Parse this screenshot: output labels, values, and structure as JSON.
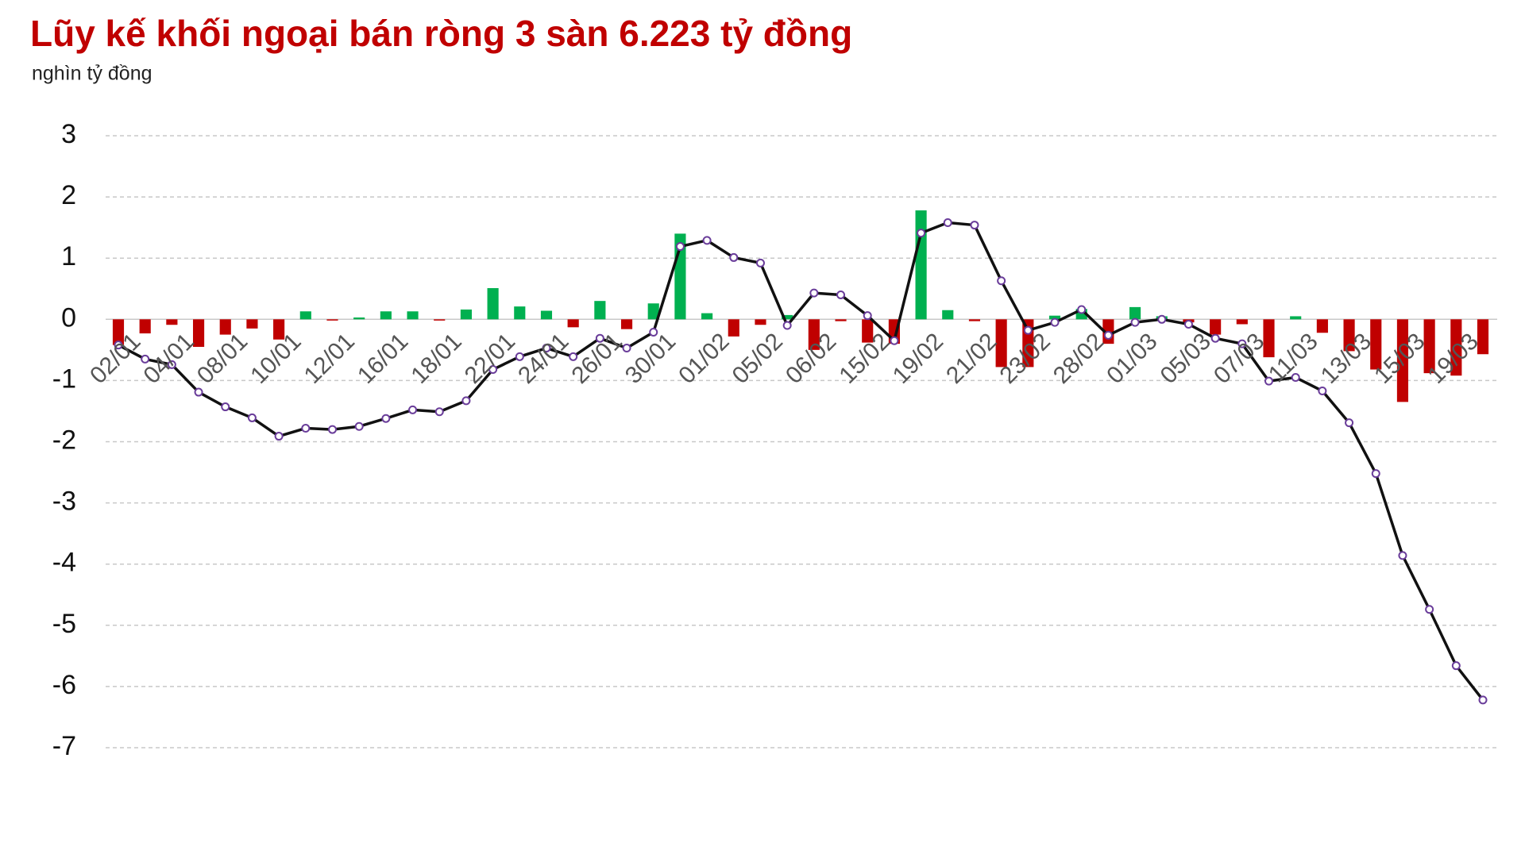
{
  "chart_data": {
    "type": "combo",
    "title": "Lũy kế khối ngoại bán ròng 3 sàn 6.223 tỷ đồng",
    "y_label": "nghìn tỷ đồng",
    "categories": [
      "02/01",
      null,
      "04/01",
      null,
      "08/01",
      null,
      "10/01",
      null,
      "12/01",
      null,
      "16/01",
      null,
      "18/01",
      null,
      "22/01",
      null,
      "24/01",
      null,
      "26/01",
      null,
      "30/01",
      null,
      "01/02",
      null,
      "05/02",
      null,
      "06/02",
      null,
      "15/02",
      null,
      "19/02",
      null,
      "21/02",
      null,
      "23/02",
      null,
      "28/02",
      null,
      "01/03",
      null,
      "05/03",
      null,
      "07/03",
      null,
      "11/03",
      null,
      "13/03",
      null,
      "15/03",
      null,
      "19/03",
      null
    ],
    "series": [
      {
        "type": "bar",
        "color": "#00b050",
        "negative_color": "#c00000",
        "values": [
          -0.42,
          -0.23,
          -0.09,
          -0.45,
          -0.25,
          -0.15,
          -0.33,
          0.13,
          -0.02,
          0.03,
          0.13,
          0.13,
          -0.02,
          0.16,
          0.51,
          0.21,
          0.14,
          -0.13,
          0.3,
          -0.16,
          0.26,
          1.4,
          0.1,
          -0.28,
          -0.09,
          0.07,
          -0.5,
          -0.03,
          -0.38,
          -0.4,
          1.78,
          0.15,
          -0.03,
          -0.78,
          -0.78,
          0.06,
          0.17,
          -0.4,
          0.2,
          0.05,
          -0.05,
          -0.25,
          -0.08,
          -0.62,
          0.05,
          -0.22,
          -0.52,
          -0.82,
          -1.35,
          -0.88,
          -0.92,
          -0.57
        ]
      },
      {
        "type": "line",
        "color": "#111111",
        "marker_color": "#ffffff",
        "marker_edge": "#6a3d9a",
        "values": [
          -0.42,
          -0.65,
          -0.74,
          -1.19,
          -1.43,
          -1.61,
          -1.91,
          -1.78,
          -1.8,
          -1.75,
          -1.62,
          -1.48,
          -1.51,
          -1.33,
          -0.82,
          -0.61,
          -0.47,
          -0.61,
          -0.31,
          -0.47,
          -0.21,
          1.19,
          1.29,
          1.01,
          0.92,
          -0.1,
          0.43,
          0.4,
          0.06,
          -0.35,
          1.41,
          1.58,
          1.54,
          0.63,
          -0.18,
          -0.05,
          0.16,
          -0.26,
          -0.05,
          0,
          -0.08,
          -0.31,
          -0.4,
          -1.01,
          -0.95,
          -1.17,
          -1.69,
          -2.52,
          -3.86,
          -4.74,
          -5.66,
          -6.22
        ]
      }
    ],
    "ylim": [
      -7,
      3
    ],
    "yticks": [
      3,
      2,
      1,
      0,
      -1,
      -2,
      -3,
      -4,
      -5,
      -6,
      -7
    ],
    "grid": true
  }
}
